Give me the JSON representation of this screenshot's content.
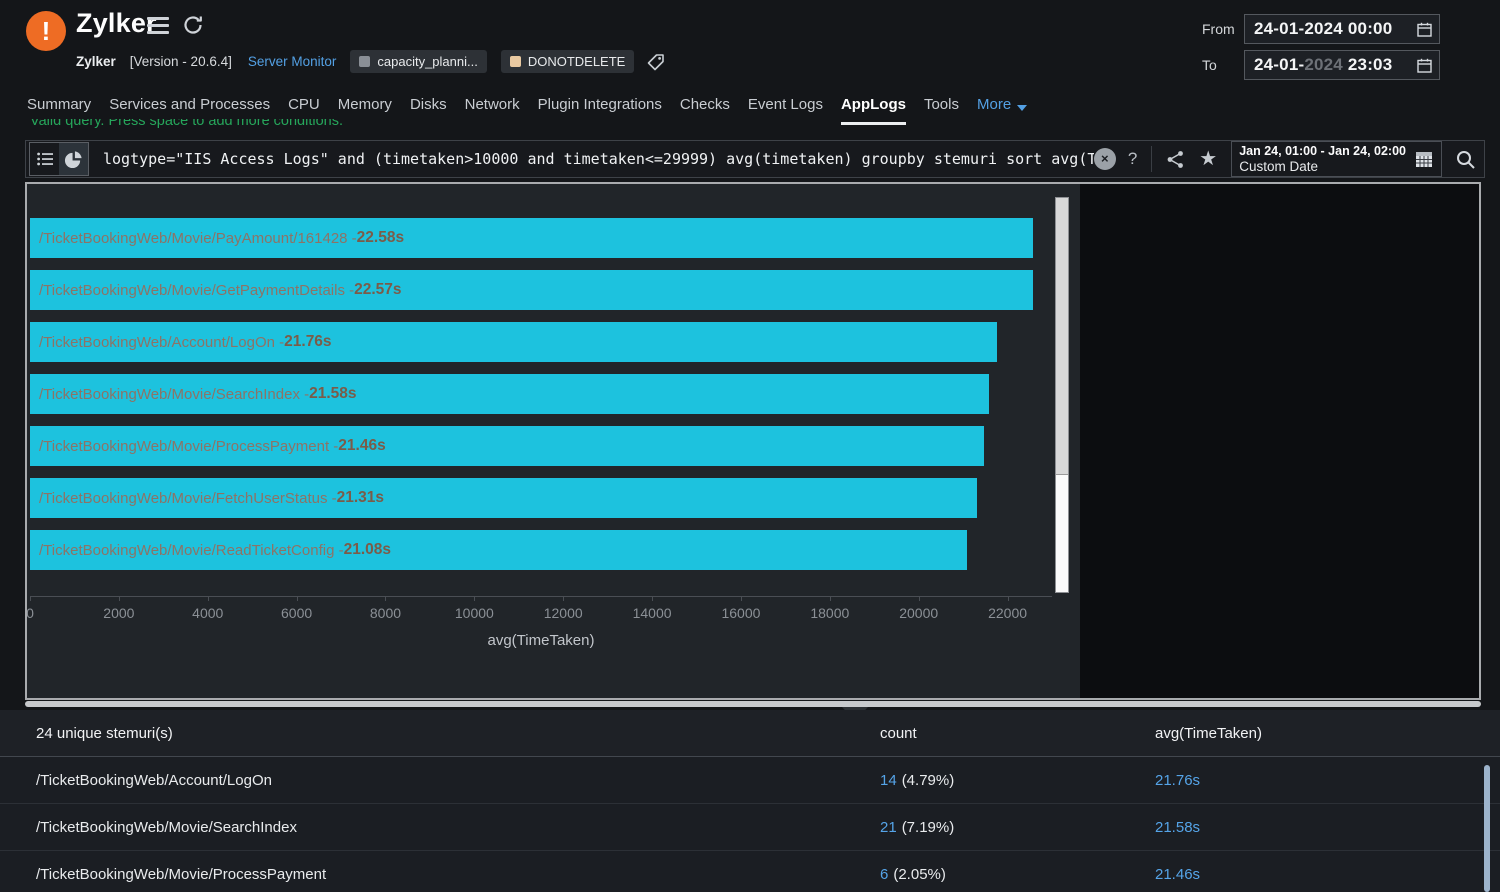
{
  "header": {
    "badge_glyph": "!",
    "app_title": "Zylker",
    "name": "Zylker",
    "version": "[Version - 20.6.4]",
    "monitor_link": "Server Monitor",
    "tags": [
      {
        "label": "capacity_planni...",
        "swatch": "#8a8f96"
      },
      {
        "label": "DONOTDELETE",
        "swatch": "#e9c9a1"
      }
    ],
    "from_label": "From",
    "from_value": "24-01-2024 00:00",
    "to_label": "To",
    "to_date_prefix": "24-01-",
    "to_year_muted": "2024",
    "to_time": " 23:03"
  },
  "tabs": [
    {
      "label": "Summary",
      "active": false,
      "dropdown": false
    },
    {
      "label": "Services and Processes",
      "active": false,
      "dropdown": false
    },
    {
      "label": "CPU",
      "active": false,
      "dropdown": false
    },
    {
      "label": "Memory",
      "active": false,
      "dropdown": false
    },
    {
      "label": "Disks",
      "active": false,
      "dropdown": false
    },
    {
      "label": "Network",
      "active": false,
      "dropdown": false
    },
    {
      "label": "Plugin Integrations",
      "active": false,
      "dropdown": false
    },
    {
      "label": "Checks",
      "active": false,
      "dropdown": false
    },
    {
      "label": "Event Logs",
      "active": false,
      "dropdown": false
    },
    {
      "label": "AppLogs",
      "active": true,
      "dropdown": false
    },
    {
      "label": "Tools",
      "active": false,
      "dropdown": false
    },
    {
      "label": "More",
      "active": false,
      "dropdown": true
    }
  ],
  "query": {
    "hint": "Valid query. Press space to add more conditions.",
    "text": "logtype=\"IIS Access Logs\" and (timetaken>10000 and timetaken<=29999) avg(timetaken) groupby stemuri sort avg(TimeTaken)",
    "close_glyph": "×",
    "help_glyph": "?",
    "star_glyph": "★",
    "date_range": "Jan 24, 01:00 - Jan 24, 02:00",
    "date_mode": "Custom Date"
  },
  "chart_data": {
    "type": "bar",
    "orientation": "horizontal",
    "title": "",
    "xlabel": "avg(TimeTaken)",
    "ylabel": "",
    "xlim": [
      0,
      23000
    ],
    "x_ticks": [
      0,
      2000,
      4000,
      6000,
      8000,
      10000,
      12000,
      14000,
      16000,
      18000,
      20000,
      22000
    ],
    "grid": false,
    "legend": "none",
    "categories": [
      "/TicketBookingWeb/Movie/PayAmount/161428",
      "/TicketBookingWeb/Movie/GetPaymentDetails",
      "/TicketBookingWeb/Account/LogOn",
      "/TicketBookingWeb/Movie/SearchIndex",
      "/TicketBookingWeb/Movie/ProcessPayment",
      "/TicketBookingWeb/Movie/FetchUserStatus",
      "/TicketBookingWeb/Movie/ReadTicketConfig"
    ],
    "values_ms": [
      22580,
      22570,
      21760,
      21580,
      21460,
      21310,
      21080
    ],
    "value_labels": [
      "22.58s",
      "22.57s",
      "21.76s",
      "21.58s",
      "21.46s",
      "21.31s",
      "21.08s"
    ],
    "bar_color": "#1dc2de",
    "label_separator": " - "
  },
  "table": {
    "group_header": "24 unique stemuri(s)",
    "count_header": "count",
    "avg_header": "avg(TimeTaken)",
    "rows": [
      {
        "stemuri": "/TicketBookingWeb/Account/LogOn",
        "count": "14",
        "pct": "(4.79%)",
        "avg": "21.76s"
      },
      {
        "stemuri": "/TicketBookingWeb/Movie/SearchIndex",
        "count": "21",
        "pct": "(7.19%)",
        "avg": "21.58s"
      },
      {
        "stemuri": "/TicketBookingWeb/Movie/ProcessPayment",
        "count": "6",
        "pct": "(2.05%)",
        "avg": "21.46s"
      }
    ]
  },
  "colors": {
    "brand_orange": "#ee6c24",
    "accent_blue": "#55a4e8",
    "bar_cyan": "#1dc2de",
    "valid_green": "#26a65b"
  }
}
